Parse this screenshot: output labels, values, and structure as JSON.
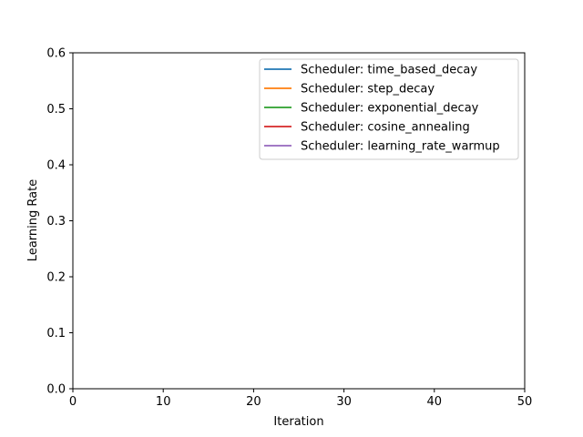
{
  "chart_data": {
    "type": "line",
    "title": "",
    "xlabel": "Iteration",
    "ylabel": "Learning Rate",
    "xlim": [
      0,
      50
    ],
    "ylim": [
      0,
      0.6
    ],
    "xticks": [
      "0",
      "10",
      "20",
      "30",
      "40",
      "50"
    ],
    "yticks": [
      "0.0",
      "0.1",
      "0.2",
      "0.3",
      "0.4",
      "0.5",
      "0.6"
    ],
    "grid": false,
    "legend_position": "top-right",
    "series": [
      {
        "name": "Scheduler: time_based_decay",
        "color": "#1f77b4",
        "x": [],
        "y": []
      },
      {
        "name": "Scheduler: step_decay",
        "color": "#ff7f0e",
        "x": [],
        "y": []
      },
      {
        "name": "Scheduler: exponential_decay",
        "color": "#2ca02c",
        "x": [],
        "y": []
      },
      {
        "name": "Scheduler: cosine_annealing",
        "color": "#d62728",
        "x": [],
        "y": []
      },
      {
        "name": "Scheduler: learning_rate_warmup",
        "color": "#9467bd",
        "x": [],
        "y": []
      }
    ]
  }
}
